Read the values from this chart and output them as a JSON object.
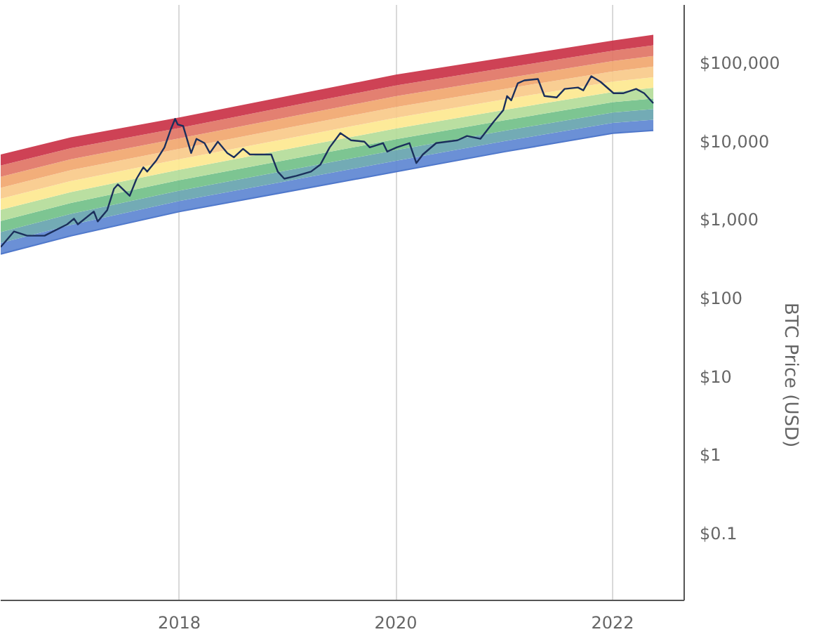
{
  "chart_data": {
    "type": "line",
    "ylabel": "BTC Price (USD)",
    "log": "y",
    "grid": "x",
    "xlim": [
      "2016-05-09",
      "2022-08-30"
    ],
    "xticks": [
      "2018",
      "2020",
      "2022"
    ],
    "ylim": [
      0.014,
      556000
    ],
    "yticks": [
      {
        "value": 0.1,
        "label": "$0.1"
      },
      {
        "value": 1,
        "label": "$1"
      },
      {
        "value": 10,
        "label": "$10"
      },
      {
        "value": 100,
        "label": "$100"
      },
      {
        "value": 1000,
        "label": "$1,000"
      },
      {
        "value": 10000,
        "label": "$10,000"
      },
      {
        "value": 100000,
        "label": "$100,000"
      }
    ],
    "series": [
      {
        "type": "line",
        "color": "#4a72c8",
        "x": [
          "2016-05-09",
          "2017-01-01",
          "2018-01-01",
          "2019-01-01",
          "2020-01-01",
          "2021-01-01",
          "2022-01-01",
          "2022-05-18"
        ],
        "values": [
          370,
          631,
          1285,
          2312,
          4150,
          7464,
          12850,
          13960
        ]
      },
      {
        "type": "area",
        "color": "#5b84d2",
        "x": [
          "2016-05-09",
          "2017-01-01",
          "2018-01-01",
          "2019-01-01",
          "2020-01-01",
          "2021-01-01",
          "2022-01-01",
          "2022-05-18"
        ],
        "values": [
          510,
          869,
          1746,
          3155,
          5690,
          10140,
          17380,
          19050
        ]
      },
      {
        "type": "area",
        "color": "#64a2ad",
        "x": [
          "2016-05-09",
          "2017-01-01",
          "2018-01-01",
          "2019-01-01",
          "2020-01-01",
          "2021-01-01",
          "2022-01-01",
          "2022-05-18"
        ],
        "values": [
          700,
          1199,
          2371,
          4315,
          7816,
          13800,
          23550,
          26060
        ]
      },
      {
        "type": "area",
        "color": "#6fbf86",
        "x": [
          "2016-05-09",
          "2017-01-01",
          "2018-01-01",
          "2019-01-01",
          "2020-01-01",
          "2021-01-01",
          "2022-01-01",
          "2022-05-18"
        ],
        "values": [
          970,
          1652,
          3228,
          5888,
          10720,
          18750,
          31840,
          35560
        ]
      },
      {
        "type": "area",
        "color": "#b2dc97",
        "x": [
          "2016-05-09",
          "2017-01-01",
          "2018-01-01",
          "2019-01-01",
          "2020-01-01",
          "2021-01-01",
          "2022-01-01",
          "2022-05-18"
        ],
        "values": [
          1350,
          2280,
          4385,
          8035,
          14720,
          25470,
          43050,
          48640
        ]
      },
      {
        "type": "area",
        "color": "#fde88e",
        "x": [
          "2016-05-09",
          "2017-01-01",
          "2018-01-01",
          "2019-01-01",
          "2020-01-01",
          "2021-01-01",
          "2022-01-01",
          "2022-05-18"
        ],
        "values": [
          1870,
          3141,
          5957,
          10990,
          20180,
          34670,
          58340,
          66370
        ]
      },
      {
        "type": "area",
        "color": "#f8c987",
        "x": [
          "2016-05-09",
          "2017-01-01",
          "2018-01-01",
          "2019-01-01",
          "2020-01-01",
          "2021-01-01",
          "2022-01-01",
          "2022-05-18"
        ],
        "values": [
          2580,
          4335,
          8110,
          15000,
          27670,
          47100,
          78890,
          90780
        ]
      },
      {
        "type": "area",
        "color": "#f1a56b",
        "x": [
          "2016-05-09",
          "2017-01-01",
          "2018-01-01",
          "2019-01-01",
          "2020-01-01",
          "2021-01-01",
          "2022-01-01",
          "2022-05-18"
        ],
        "values": [
          3570,
          5970,
          11020,
          20460,
          38020,
          63970,
          106700,
          123900
        ]
      },
      {
        "type": "area",
        "color": "#e07262",
        "x": [
          "2016-05-09",
          "2017-01-01",
          "2018-01-01",
          "2019-01-01",
          "2020-01-01",
          "2021-01-01",
          "2022-01-01",
          "2022-05-18"
        ],
        "values": [
          4950,
          8241,
          14960,
          27990,
          52120,
          87100,
          144500,
          169400
        ]
      },
      {
        "type": "area",
        "color": "#c92e42",
        "x": [
          "2016-05-09",
          "2017-01-01",
          "2018-01-01",
          "2019-01-01",
          "2020-01-01",
          "2021-01-01",
          "2022-01-01",
          "2022-05-18"
        ],
        "values": [
          6860,
          11350,
          20370,
          38190,
          71610,
          118300,
          195400,
          231200
        ]
      },
      {
        "color": "#1b2f5c",
        "x": [
          "2016-05-09",
          "2016-06-23",
          "2016-08-06",
          "2016-10-04",
          "2016-12-19",
          "2017-01-11",
          "2017-01-24",
          "2017-03-19",
          "2017-04-01",
          "2017-05-03",
          "2017-05-26",
          "2017-06-08",
          "2017-07-18",
          "2017-08-10",
          "2017-09-02",
          "2017-09-15",
          "2017-10-16",
          "2017-11-12",
          "2017-12-04",
          "2017-12-18",
          "2017-12-27",
          "2018-01-14",
          "2018-02-10",
          "2018-02-28",
          "2018-03-27",
          "2018-04-14",
          "2018-05-11",
          "2018-06-12",
          "2018-07-04",
          "2018-08-04",
          "2018-08-27",
          "2018-11-07",
          "2018-11-29",
          "2018-12-21",
          "2019-01-31",
          "2019-03-21",
          "2019-04-22",
          "2019-05-23",
          "2019-06-28",
          "2019-08-03",
          "2019-09-17",
          "2019-10-05",
          "2019-11-19",
          "2019-12-03",
          "2020-01-04",
          "2020-02-16",
          "2020-03-10",
          "2020-04-01",
          "2020-05-16",
          "2020-07-27",
          "2020-08-28",
          "2020-10-12",
          "2020-11-26",
          "2020-12-28",
          "2021-01-10",
          "2021-01-24",
          "2021-02-15",
          "2021-03-09",
          "2021-04-24",
          "2021-05-16",
          "2021-06-26",
          "2021-07-23",
          "2021-09-06",
          "2021-09-24",
          "2021-10-21",
          "2021-11-21",
          "2022-01-04",
          "2022-02-05",
          "2022-03-21",
          "2022-04-17",
          "2022-05-18"
        ],
        "values": [
          452,
          716,
          631,
          631,
          881,
          1042,
          881,
          1285,
          959,
          1340,
          2512,
          2851,
          2037,
          3367,
          4710,
          4150,
          5800,
          8455,
          14590,
          19540,
          16520,
          15850,
          7160,
          10870,
          9590,
          7160,
          10000,
          7160,
          6310,
          8110,
          6860,
          6860,
          4150,
          3367,
          3660,
          4150,
          5120,
          8455,
          12850,
          10420,
          10000,
          8455,
          9590,
          7460,
          8455,
          9590,
          5330,
          6860,
          9590,
          10420,
          11830,
          10870,
          17990,
          25120,
          38190,
          33650,
          55590,
          60520,
          63100,
          38190,
          36640,
          47100,
          49090,
          45190,
          68550,
          58030,
          41500,
          41500,
          47100,
          41500,
          30970
        ]
      }
    ]
  }
}
